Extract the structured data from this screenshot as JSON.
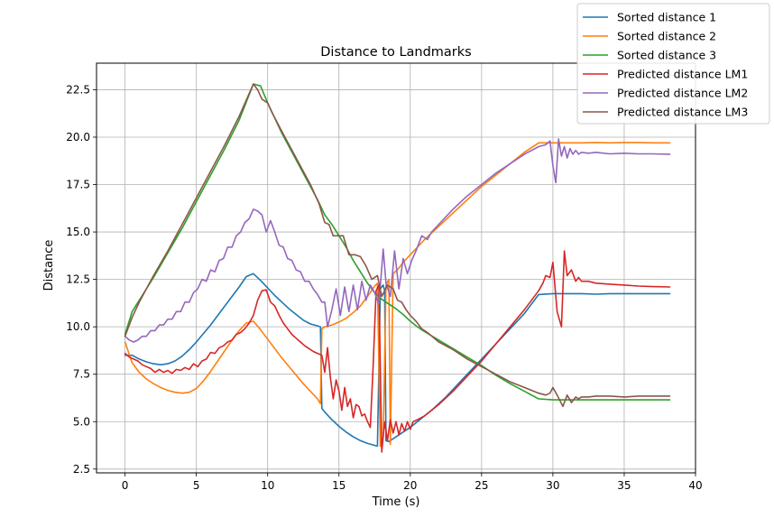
{
  "chart_data": {
    "type": "line",
    "title": "Distance to Landmarks",
    "xlabel": "Time (s)",
    "ylabel": "Distance",
    "xlim": [
      -2,
      40
    ],
    "ylim": [
      2.3,
      23.9
    ],
    "xticks": [
      0,
      5,
      10,
      15,
      20,
      25,
      30,
      35,
      40
    ],
    "yticks": [
      2.5,
      5.0,
      7.5,
      10.0,
      12.5,
      15.0,
      17.5,
      20.0,
      22.5
    ],
    "xtick_labels": [
      "0",
      "5",
      "10",
      "15",
      "20",
      "25",
      "30",
      "35",
      "40"
    ],
    "ytick_labels": [
      "2.5",
      "5.0",
      "7.5",
      "10.0",
      "12.5",
      "15.0",
      "17.5",
      "20.0",
      "22.5"
    ],
    "grid": true,
    "legend_position": "top-right",
    "series": [
      {
        "name": "Sorted distance 1",
        "color": "#1f77b4",
        "x": [
          0,
          0.5,
          1,
          1.5,
          2,
          2.5,
          3,
          3.5,
          4,
          4.5,
          5,
          5.5,
          6,
          6.5,
          7,
          7.5,
          8,
          8.5,
          9,
          9.5,
          10,
          10.5,
          11,
          11.5,
          12,
          12.5,
          13,
          13.5,
          13.7,
          13.8,
          14,
          14.5,
          15,
          15.5,
          16,
          16.5,
          17,
          17.5,
          17.6,
          17.7,
          17.9,
          18.1,
          18.2,
          18.3,
          18.5,
          19,
          19.5,
          20,
          20.5,
          21,
          21.5,
          22,
          22.5,
          23,
          24,
          25,
          26,
          27,
          28,
          29,
          30,
          31,
          32,
          33,
          34,
          35,
          36,
          37,
          38.2
        ],
        "y": [
          8.5,
          8.5,
          8.3,
          8.15,
          8.05,
          8.0,
          8.05,
          8.2,
          8.45,
          8.8,
          9.2,
          9.65,
          10.1,
          10.6,
          11.1,
          11.6,
          12.1,
          12.65,
          12.8,
          12.45,
          12.05,
          11.65,
          11.3,
          10.95,
          10.65,
          10.35,
          10.15,
          10.05,
          10.0,
          5.7,
          5.5,
          5.1,
          4.75,
          4.45,
          4.2,
          4.0,
          3.85,
          3.75,
          3.72,
          3.72,
          12.0,
          12.2,
          11.9,
          4.0,
          3.95,
          4.2,
          4.45,
          4.7,
          5.0,
          5.3,
          5.6,
          5.95,
          6.3,
          6.7,
          7.5,
          8.3,
          9.1,
          9.9,
          10.7,
          11.7,
          11.75,
          11.75,
          11.75,
          11.72,
          11.75,
          11.75,
          11.75,
          11.75,
          11.75
        ]
      },
      {
        "name": "Sorted distance 2",
        "color": "#ff7f0e",
        "x": [
          0,
          0.5,
          1,
          1.5,
          2,
          2.5,
          3,
          3.5,
          4,
          4.5,
          5,
          5.5,
          6,
          6.5,
          7,
          7.5,
          8,
          8.5,
          9,
          9.5,
          10,
          10.5,
          11,
          11.5,
          12,
          12.5,
          13,
          13.5,
          13.7,
          13.8,
          14,
          14.5,
          15,
          15.5,
          16,
          16.5,
          17,
          17.5,
          17.7,
          17.9,
          18.1,
          18.3,
          18.5,
          18.6,
          18.8,
          19.2,
          19.5,
          20,
          20.5,
          21,
          22,
          23,
          24,
          25,
          26,
          27,
          28,
          29,
          30,
          31,
          32,
          33,
          34,
          35,
          36,
          37,
          38.2
        ],
        "y": [
          9.2,
          8.1,
          7.6,
          7.25,
          7.0,
          6.8,
          6.65,
          6.55,
          6.5,
          6.55,
          6.75,
          7.15,
          7.65,
          8.2,
          8.75,
          9.3,
          9.8,
          10.2,
          10.3,
          9.85,
          9.35,
          8.85,
          8.35,
          7.9,
          7.45,
          7.0,
          6.6,
          6.2,
          5.95,
          9.9,
          10.0,
          10.1,
          10.25,
          10.45,
          10.75,
          11.1,
          11.6,
          12.15,
          12.3,
          3.7,
          4.2,
          12.2,
          12.5,
          3.8,
          12.8,
          13.1,
          13.4,
          13.8,
          14.2,
          14.6,
          15.3,
          16.0,
          16.7,
          17.4,
          18.0,
          18.6,
          19.2,
          19.7,
          19.7,
          19.7,
          19.7,
          19.72,
          19.7,
          19.72,
          19.72,
          19.7,
          19.7
        ]
      },
      {
        "name": "Sorted distance 3",
        "color": "#2ca02c",
        "x": [
          0,
          0.5,
          1,
          2,
          3,
          4,
          5,
          6,
          7,
          8,
          9,
          9.5,
          10,
          11,
          12,
          13,
          13.5,
          14,
          14.5,
          15,
          15.5,
          16,
          16.5,
          17,
          17.5,
          18,
          18.5,
          19,
          19.5,
          20,
          20.5,
          21,
          22,
          23,
          24,
          25,
          26,
          27,
          28,
          29,
          30,
          31,
          32,
          33,
          34,
          35,
          36,
          37,
          38.2
        ],
        "y": [
          9.6,
          10.8,
          11.4,
          12.6,
          13.9,
          15.2,
          16.6,
          18.0,
          19.4,
          20.9,
          22.8,
          22.7,
          21.8,
          20.2,
          18.8,
          17.4,
          16.7,
          15.9,
          15.4,
          14.8,
          14.2,
          13.5,
          12.9,
          12.3,
          11.8,
          11.45,
          11.2,
          10.95,
          10.65,
          10.3,
          10.0,
          9.75,
          9.3,
          8.85,
          8.4,
          7.95,
          7.45,
          7.0,
          6.6,
          6.2,
          6.15,
          6.15,
          6.15,
          6.15,
          6.15,
          6.15,
          6.15,
          6.15,
          6.15
        ]
      },
      {
        "name": "Predicted distance LM1",
        "color": "#d62728",
        "x": [
          0,
          0.3,
          0.6,
          0.9,
          1.2,
          1.5,
          1.8,
          2.1,
          2.4,
          2.7,
          3.0,
          3.3,
          3.6,
          3.9,
          4.2,
          4.5,
          4.8,
          5.1,
          5.4,
          5.7,
          6.0,
          6.3,
          6.6,
          6.9,
          7.2,
          7.5,
          7.8,
          8.1,
          8.4,
          8.7,
          9.0,
          9.3,
          9.6,
          9.9,
          10.2,
          10.5,
          10.8,
          11.1,
          11.4,
          11.7,
          12.0,
          12.3,
          12.6,
          12.9,
          13.2,
          13.5,
          13.8,
          14.0,
          14.2,
          14.4,
          14.6,
          14.8,
          15.0,
          15.2,
          15.4,
          15.6,
          15.8,
          16.0,
          16.2,
          16.4,
          16.6,
          16.8,
          17.0,
          17.2,
          17.4,
          17.6,
          17.8,
          18.0,
          18.2,
          18.4,
          18.6,
          18.8,
          19.0,
          19.2,
          19.4,
          19.6,
          19.8,
          20.0,
          20.2,
          20.5,
          21,
          22,
          23,
          24,
          25,
          26,
          27,
          28,
          28.5,
          29,
          29.3,
          29.5,
          29.8,
          30.0,
          30.3,
          30.6,
          30.8,
          31.0,
          31.3,
          31.6,
          31.8,
          32.0,
          32.5,
          33,
          34,
          35,
          36,
          37,
          38.2
        ],
        "y": [
          8.6,
          8.4,
          8.3,
          8.2,
          8.0,
          7.9,
          7.8,
          7.6,
          7.75,
          7.6,
          7.7,
          7.55,
          7.75,
          7.7,
          7.85,
          7.75,
          8.05,
          7.9,
          8.2,
          8.3,
          8.65,
          8.6,
          8.9,
          9.0,
          9.2,
          9.3,
          9.6,
          9.7,
          9.9,
          10.2,
          10.6,
          11.4,
          11.9,
          11.95,
          11.3,
          11.1,
          10.6,
          10.2,
          9.9,
          9.6,
          9.4,
          9.2,
          9.0,
          8.85,
          8.7,
          8.6,
          8.5,
          7.6,
          8.9,
          7.3,
          6.2,
          7.2,
          6.6,
          5.6,
          6.8,
          5.8,
          6.2,
          5.2,
          5.9,
          5.8,
          5.3,
          5.4,
          5.0,
          4.7,
          8.0,
          11.9,
          12.2,
          3.4,
          5.0,
          4.0,
          5.1,
          4.4,
          5.0,
          4.3,
          4.9,
          4.5,
          5.0,
          4.6,
          5.0,
          5.1,
          5.3,
          5.9,
          6.6,
          7.4,
          8.2,
          9.1,
          10.0,
          10.9,
          11.4,
          11.9,
          12.3,
          12.7,
          12.6,
          13.4,
          10.8,
          10.0,
          14.0,
          12.7,
          13.0,
          12.4,
          12.6,
          12.4,
          12.4,
          12.3,
          12.25,
          12.2,
          12.15,
          12.12,
          12.1
        ]
      },
      {
        "name": "Predicted distance LM2",
        "color": "#9467bd",
        "x": [
          0,
          0.3,
          0.6,
          0.9,
          1.2,
          1.5,
          1.8,
          2.1,
          2.4,
          2.7,
          3.0,
          3.3,
          3.6,
          3.9,
          4.2,
          4.5,
          4.8,
          5.1,
          5.4,
          5.7,
          6.0,
          6.3,
          6.6,
          6.9,
          7.2,
          7.5,
          7.8,
          8.1,
          8.4,
          8.7,
          9.0,
          9.3,
          9.6,
          9.9,
          10.2,
          10.5,
          10.8,
          11.1,
          11.4,
          11.7,
          12.0,
          12.3,
          12.6,
          12.9,
          13.2,
          13.5,
          13.8,
          14.0,
          14.2,
          14.5,
          14.8,
          15.1,
          15.4,
          15.7,
          16.0,
          16.3,
          16.6,
          16.9,
          17.2,
          17.5,
          17.8,
          18.1,
          18.3,
          18.6,
          18.9,
          19.2,
          19.5,
          19.8,
          20.1,
          20.4,
          20.8,
          21.2,
          21.5,
          22,
          23,
          24,
          25,
          26,
          27,
          28,
          29,
          29.5,
          29.8,
          30.0,
          30.2,
          30.4,
          30.6,
          30.8,
          31.0,
          31.2,
          31.4,
          31.6,
          31.8,
          32.0,
          32.5,
          33,
          34,
          35,
          36,
          37,
          38.2
        ],
        "y": [
          9.5,
          9.3,
          9.2,
          9.3,
          9.5,
          9.5,
          9.8,
          9.8,
          10.1,
          10.1,
          10.4,
          10.4,
          10.8,
          10.8,
          11.3,
          11.3,
          11.8,
          12.0,
          12.5,
          12.4,
          13.0,
          12.9,
          13.5,
          13.6,
          14.2,
          14.2,
          14.8,
          15.0,
          15.5,
          15.7,
          16.2,
          16.1,
          15.9,
          15.0,
          15.6,
          15.0,
          14.3,
          14.2,
          13.6,
          13.5,
          13.0,
          12.9,
          12.4,
          12.4,
          12.0,
          11.7,
          11.3,
          11.3,
          10.0,
          10.9,
          12.0,
          10.6,
          12.1,
          10.8,
          12.2,
          10.9,
          12.4,
          11.4,
          12.2,
          11.8,
          11.2,
          14.1,
          12.3,
          11.6,
          14.0,
          12.0,
          13.6,
          12.8,
          13.5,
          14.0,
          14.8,
          14.6,
          15.0,
          15.4,
          16.2,
          16.9,
          17.5,
          18.1,
          18.6,
          19.1,
          19.5,
          19.6,
          19.8,
          18.5,
          17.6,
          19.9,
          19.0,
          19.5,
          18.9,
          19.4,
          19.1,
          19.3,
          19.1,
          19.2,
          19.15,
          19.2,
          19.12,
          19.15,
          19.12,
          19.12,
          19.1
        ]
      },
      {
        "name": "Predicted distance LM3",
        "color": "#8c564b",
        "x": [
          0,
          0.5,
          1,
          2,
          3,
          4,
          5,
          6,
          7,
          8,
          9,
          9.3,
          9.6,
          10.0,
          10.3,
          11,
          12,
          13,
          13.6,
          14.0,
          14.3,
          14.6,
          15.0,
          15.3,
          15.7,
          16.1,
          16.5,
          16.9,
          17.3,
          17.7,
          18.0,
          18.4,
          18.8,
          19.1,
          19.4,
          19.7,
          20.0,
          20.4,
          20.8,
          21.2,
          22,
          23,
          24,
          25,
          26,
          27,
          28,
          29,
          29.5,
          29.8,
          30.0,
          30.3,
          30.7,
          31.0,
          31.3,
          31.6,
          31.8,
          32.0,
          32.5,
          33,
          34,
          35,
          36,
          37,
          38.2
        ],
        "y": [
          9.5,
          10.5,
          11.3,
          12.7,
          14.0,
          15.4,
          16.8,
          18.2,
          19.6,
          21.1,
          22.8,
          22.5,
          22.0,
          21.8,
          21.3,
          20.3,
          18.9,
          17.5,
          16.5,
          15.5,
          15.4,
          14.8,
          14.8,
          14.8,
          13.8,
          13.8,
          13.7,
          13.2,
          12.5,
          12.7,
          11.6,
          12.2,
          12.0,
          11.4,
          11.3,
          10.9,
          10.6,
          10.3,
          9.9,
          9.7,
          9.2,
          8.8,
          8.3,
          7.9,
          7.5,
          7.1,
          6.8,
          6.5,
          6.4,
          6.5,
          6.8,
          6.4,
          5.8,
          6.4,
          6.0,
          6.3,
          6.2,
          6.3,
          6.3,
          6.35,
          6.35,
          6.3,
          6.35,
          6.35,
          6.35
        ]
      }
    ]
  }
}
